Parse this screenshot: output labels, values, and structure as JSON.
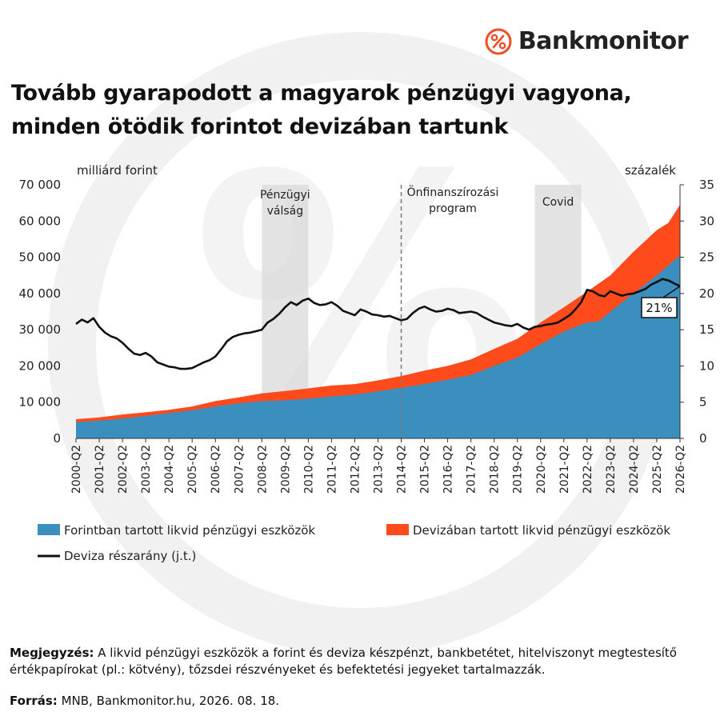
{
  "brand": {
    "name": "Bankmonitor",
    "accent_color": "#F04E23",
    "logo_icon": "percent-circle-icon"
  },
  "title_lines": [
    "Tovább gyarapodott a magyarok pénzügyi vagyona,",
    "minden ötödik forintot devizában tartunk"
  ],
  "chart_data": {
    "type": "area",
    "y_left_label": "milliárd forint",
    "y_right_label": "százalék",
    "ylim_left": [
      0,
      70000
    ],
    "ylim_right": [
      0,
      35
    ],
    "y_left_ticks": [
      "0",
      "10 000",
      "20 000",
      "30 000",
      "40 000",
      "50 000",
      "60 000",
      "70 000"
    ],
    "y_right_ticks": [
      "0",
      "5",
      "10",
      "15",
      "20",
      "25",
      "30",
      "35"
    ],
    "x_ticks": [
      "2000-Q2",
      "2001-Q2",
      "2002-Q2",
      "2003-Q2",
      "2004-Q2",
      "2005-Q2",
      "2006-Q2",
      "2007-Q2",
      "2008-Q2",
      "2009-Q2",
      "2010-Q2",
      "2011-Q2",
      "2012-Q2",
      "2013-Q2",
      "2014-Q2",
      "2015-Q2",
      "2016-Q2",
      "2017-Q2",
      "2018-Q2",
      "2019-Q2",
      "2020-Q2",
      "2021-Q2",
      "2022-Q2",
      "2023-Q2",
      "2024-Q2",
      "2025-Q2",
      "2026-Q2"
    ],
    "x_year_start": 2000.25,
    "x_year_end": 2026.25,
    "series": [
      {
        "name": "Forintban tartott likvid pénzügyi eszközök",
        "kind": "area",
        "axis": "left",
        "color": "#3A8FBF",
        "points": [
          [
            2000.25,
            4500
          ],
          [
            2001.25,
            4900
          ],
          [
            2002.25,
            5500
          ],
          [
            2003.25,
            6200
          ],
          [
            2004.25,
            7000
          ],
          [
            2005.25,
            7800
          ],
          [
            2006.25,
            8800
          ],
          [
            2007.25,
            9700
          ],
          [
            2008.25,
            10300
          ],
          [
            2009.25,
            10500
          ],
          [
            2010.25,
            11000
          ],
          [
            2011.25,
            11600
          ],
          [
            2012.25,
            12100
          ],
          [
            2013.25,
            13000
          ],
          [
            2014.25,
            14000
          ],
          [
            2015.25,
            15000
          ],
          [
            2016.25,
            16200
          ],
          [
            2017.25,
            17500
          ],
          [
            2018.25,
            20000
          ],
          [
            2019.25,
            22300
          ],
          [
            2020.25,
            26000
          ],
          [
            2021.25,
            29500
          ],
          [
            2022.25,
            32000
          ],
          [
            2022.75,
            32300
          ],
          [
            2023.25,
            35000
          ],
          [
            2024.25,
            40000
          ],
          [
            2025.25,
            45000
          ],
          [
            2026.25,
            50500
          ]
        ]
      },
      {
        "name": "Devizában tartott likvid pénzügyi eszközök",
        "kind": "area",
        "axis": "left",
        "color": "#FF4A1C",
        "points": [
          [
            2000.25,
            5300
          ],
          [
            2001.25,
            5800
          ],
          [
            2002.25,
            6600
          ],
          [
            2003.25,
            7200
          ],
          [
            2004.25,
            7900
          ],
          [
            2005.25,
            8800
          ],
          [
            2006.25,
            10300
          ],
          [
            2007.25,
            11300
          ],
          [
            2008.25,
            12400
          ],
          [
            2009.25,
            13100
          ],
          [
            2010.25,
            13800
          ],
          [
            2011.25,
            14600
          ],
          [
            2012.25,
            15000
          ],
          [
            2013.25,
            16000
          ],
          [
            2014.25,
            17200
          ],
          [
            2015.25,
            18700
          ],
          [
            2016.25,
            20000
          ],
          [
            2017.25,
            21800
          ],
          [
            2018.25,
            24700
          ],
          [
            2019.25,
            27500
          ],
          [
            2020.25,
            32000
          ],
          [
            2021.25,
            36200
          ],
          [
            2022.25,
            40500
          ],
          [
            2023.25,
            45000
          ],
          [
            2024.25,
            51500
          ],
          [
            2025.25,
            57500
          ],
          [
            2025.75,
            59500
          ],
          [
            2026.25,
            64500
          ]
        ]
      },
      {
        "name": "Deviza részarány (j.t.)",
        "kind": "line",
        "axis": "right",
        "color": "#111111",
        "points": [
          [
            2000.25,
            15.8
          ],
          [
            2000.5,
            16.4
          ],
          [
            2000.75,
            16.0
          ],
          [
            2001.0,
            16.6
          ],
          [
            2001.25,
            15.4
          ],
          [
            2001.5,
            14.6
          ],
          [
            2001.75,
            14.1
          ],
          [
            2002.0,
            13.8
          ],
          [
            2002.25,
            13.2
          ],
          [
            2002.5,
            12.4
          ],
          [
            2002.75,
            11.7
          ],
          [
            2003.0,
            11.5
          ],
          [
            2003.25,
            11.8
          ],
          [
            2003.5,
            11.3
          ],
          [
            2003.75,
            10.5
          ],
          [
            2004.0,
            10.2
          ],
          [
            2004.25,
            9.9
          ],
          [
            2004.5,
            9.8
          ],
          [
            2004.75,
            9.6
          ],
          [
            2005.0,
            9.6
          ],
          [
            2005.25,
            9.7
          ],
          [
            2005.5,
            10.1
          ],
          [
            2005.75,
            10.5
          ],
          [
            2006.0,
            10.8
          ],
          [
            2006.25,
            11.3
          ],
          [
            2006.5,
            12.3
          ],
          [
            2006.75,
            13.4
          ],
          [
            2007.0,
            14.0
          ],
          [
            2007.25,
            14.3
          ],
          [
            2007.5,
            14.5
          ],
          [
            2007.75,
            14.6
          ],
          [
            2008.0,
            14.8
          ],
          [
            2008.25,
            15.0
          ],
          [
            2008.5,
            16.0
          ],
          [
            2008.75,
            16.5
          ],
          [
            2009.0,
            17.2
          ],
          [
            2009.25,
            18.1
          ],
          [
            2009.5,
            18.8
          ],
          [
            2009.75,
            18.4
          ],
          [
            2010.0,
            19.0
          ],
          [
            2010.25,
            19.3
          ],
          [
            2010.5,
            18.7
          ],
          [
            2010.75,
            18.4
          ],
          [
            2011.0,
            18.5
          ],
          [
            2011.25,
            18.8
          ],
          [
            2011.5,
            18.3
          ],
          [
            2011.75,
            17.6
          ],
          [
            2012.0,
            17.3
          ],
          [
            2012.25,
            17.0
          ],
          [
            2012.5,
            17.8
          ],
          [
            2012.75,
            17.5
          ],
          [
            2013.0,
            17.1
          ],
          [
            2013.25,
            17.0
          ],
          [
            2013.5,
            16.8
          ],
          [
            2013.75,
            16.9
          ],
          [
            2014.0,
            16.6
          ],
          [
            2014.25,
            16.3
          ],
          [
            2014.5,
            16.5
          ],
          [
            2014.75,
            17.3
          ],
          [
            2015.0,
            17.9
          ],
          [
            2015.25,
            18.2
          ],
          [
            2015.5,
            17.8
          ],
          [
            2015.75,
            17.5
          ],
          [
            2016.0,
            17.6
          ],
          [
            2016.25,
            17.9
          ],
          [
            2016.5,
            17.7
          ],
          [
            2016.75,
            17.3
          ],
          [
            2017.0,
            17.4
          ],
          [
            2017.25,
            17.5
          ],
          [
            2017.5,
            17.3
          ],
          [
            2017.75,
            16.8
          ],
          [
            2018.0,
            16.4
          ],
          [
            2018.25,
            16.0
          ],
          [
            2018.5,
            15.8
          ],
          [
            2018.75,
            15.6
          ],
          [
            2019.0,
            15.5
          ],
          [
            2019.25,
            15.8
          ],
          [
            2019.5,
            15.3
          ],
          [
            2019.75,
            15.0
          ],
          [
            2020.0,
            15.4
          ],
          [
            2020.25,
            15.5
          ],
          [
            2020.5,
            15.7
          ],
          [
            2020.75,
            15.8
          ],
          [
            2021.0,
            16.0
          ],
          [
            2021.25,
            16.5
          ],
          [
            2021.5,
            17.0
          ],
          [
            2021.75,
            17.8
          ],
          [
            2022.0,
            18.8
          ],
          [
            2022.25,
            20.5
          ],
          [
            2022.5,
            20.3
          ],
          [
            2022.75,
            19.8
          ],
          [
            2023.0,
            19.6
          ],
          [
            2023.25,
            20.3
          ],
          [
            2023.5,
            20.0
          ],
          [
            2023.75,
            19.7
          ],
          [
            2024.0,
            19.9
          ],
          [
            2024.25,
            20.0
          ],
          [
            2024.5,
            20.3
          ],
          [
            2024.75,
            20.6
          ],
          [
            2025.0,
            21.2
          ],
          [
            2025.25,
            21.6
          ],
          [
            2025.5,
            22.0
          ],
          [
            2025.75,
            21.8
          ],
          [
            2026.0,
            21.4
          ],
          [
            2026.25,
            21.0
          ]
        ]
      }
    ],
    "shaded_periods": [
      {
        "label_lines": [
          "Pénzügyi",
          "válság"
        ],
        "start": 2008.25,
        "end": 2010.25,
        "color": "#D9D9D9"
      },
      {
        "label_lines": [
          "Covid"
        ],
        "start": 2020.0,
        "end": 2022.0,
        "color": "#D9D9D9"
      }
    ],
    "vline": {
      "label_lines": [
        "Önfinanszírozási",
        "program"
      ],
      "x": 2014.25
    },
    "callout": {
      "text": "21%",
      "x": 2026.25,
      "y": 21
    },
    "legend": [
      {
        "label": "Forintban tartott likvid pénzügyi eszközök",
        "color": "#3A8FBF",
        "kind": "box"
      },
      {
        "label": "Devizában tartott likvid pénzügyi eszközök",
        "color": "#FF4A1C",
        "kind": "box"
      },
      {
        "label": "Deviza részarány (j.t.)",
        "color": "#111111",
        "kind": "line"
      }
    ],
    "legend_placement": "bottom"
  },
  "notes": {
    "label": "Megjegyzés:",
    "text": "A likvid pénzügyi eszközök a forint és deviza készpénzt, bankbetétet, hitelviszonyt megtestesítő értékpapírokat (pl.: kötvény), tőzsdei részvényeket és befektetési jegyeket tartalmazzák."
  },
  "source": {
    "label": "Forrás:",
    "text": "MNB, Bankmonitor.hu, 2026. 08. 18."
  }
}
